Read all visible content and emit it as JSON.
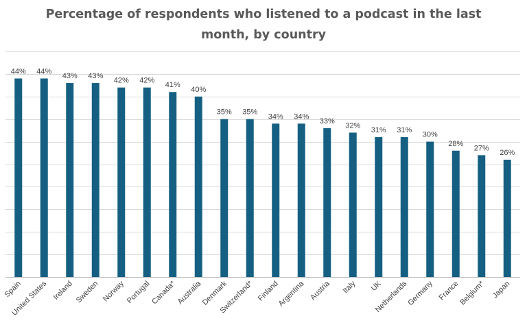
{
  "chart_data": {
    "type": "bar",
    "title": "Percentage of respondents who listened to a podcast in the last month, by country",
    "categories": [
      "Spain",
      "United States",
      "Ireland",
      "Sweden",
      "Norway",
      "Portugal",
      "Canada*",
      "Australia",
      "Denmark",
      "Switzerland*",
      "Finland",
      "Argentina",
      "Austria",
      "Italy",
      "UK",
      "Netherlands",
      "Germany",
      "France",
      "Belgium*",
      "Japan"
    ],
    "values": [
      44,
      44,
      43,
      43,
      42,
      42,
      41,
      40,
      35,
      35,
      34,
      34,
      33,
      32,
      31,
      31,
      30,
      28,
      27,
      26
    ],
    "value_suffix": "%",
    "xlabel": "",
    "ylabel": "",
    "ylim": [
      0,
      50
    ],
    "grid": true,
    "legend": "none",
    "bar_color": "#156082"
  }
}
